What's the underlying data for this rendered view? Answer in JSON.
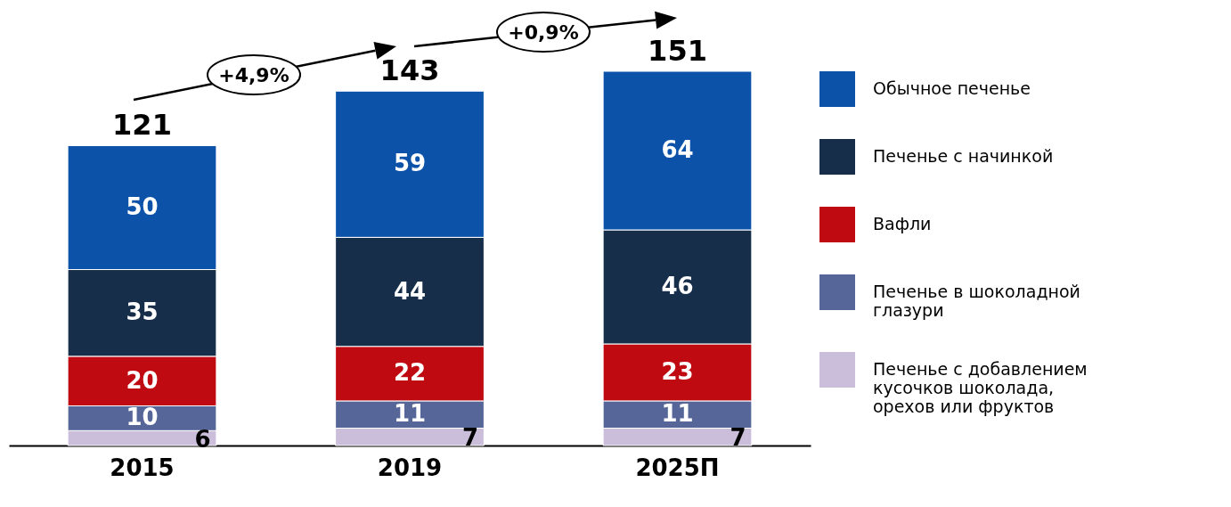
{
  "chart_data": {
    "type": "bar",
    "stacked": true,
    "data_labels": true,
    "legend": "right",
    "categories": [
      "2015",
      "2019",
      "2025П"
    ],
    "series": [
      {
        "name": "Печенье с добавлением кусочков шоколада, орехов или фруктов",
        "color": "#cbbedb",
        "values": [
          6,
          7,
          7
        ]
      },
      {
        "name": "Печенье в шоколадной глазури",
        "color": "#566699",
        "values": [
          10,
          11,
          11
        ]
      },
      {
        "name": "Вафли",
        "color": "#c00a12",
        "values": [
          20,
          22,
          23
        ]
      },
      {
        "name": "Печенье с начинкой",
        "color": "#172e4a",
        "values": [
          35,
          44,
          46
        ]
      },
      {
        "name": "Обычное печенье",
        "color": "#0b52a8",
        "values": [
          50,
          59,
          64
        ]
      }
    ],
    "totals": [
      "121",
      "143",
      "151"
    ],
    "annotations": [
      "+4,9%",
      "+0,9%"
    ]
  }
}
